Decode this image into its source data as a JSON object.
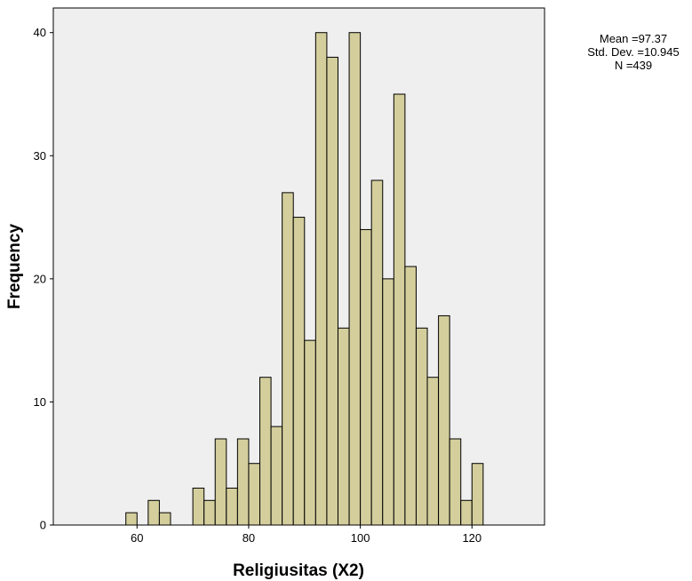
{
  "chart_data": {
    "type": "bar",
    "subtype": "histogram",
    "xlabel": "Religiusitas (X2)",
    "ylabel": "Frequency",
    "xlim": [
      45,
      133
    ],
    "ylim": [
      0,
      42
    ],
    "x_ticks": [
      60,
      80,
      100,
      120
    ],
    "y_ticks": [
      0,
      10,
      20,
      30,
      40
    ],
    "bin_width": 2,
    "bins": [
      {
        "center": 59,
        "count": 1
      },
      {
        "center": 63,
        "count": 2
      },
      {
        "center": 65,
        "count": 1
      },
      {
        "center": 71,
        "count": 3
      },
      {
        "center": 73,
        "count": 2
      },
      {
        "center": 75,
        "count": 7
      },
      {
        "center": 77,
        "count": 3
      },
      {
        "center": 79,
        "count": 7
      },
      {
        "center": 81,
        "count": 5
      },
      {
        "center": 83,
        "count": 12
      },
      {
        "center": 85,
        "count": 8
      },
      {
        "center": 87,
        "count": 27
      },
      {
        "center": 89,
        "count": 25
      },
      {
        "center": 91,
        "count": 15
      },
      {
        "center": 93,
        "count": 40
      },
      {
        "center": 95,
        "count": 38
      },
      {
        "center": 97,
        "count": 16
      },
      {
        "center": 99,
        "count": 40
      },
      {
        "center": 101,
        "count": 24
      },
      {
        "center": 103,
        "count": 28
      },
      {
        "center": 105,
        "count": 20
      },
      {
        "center": 107,
        "count": 35
      },
      {
        "center": 109,
        "count": 21
      },
      {
        "center": 111,
        "count": 16
      },
      {
        "center": 113,
        "count": 12
      },
      {
        "center": 115,
        "count": 17
      },
      {
        "center": 117,
        "count": 7
      },
      {
        "center": 119,
        "count": 2
      },
      {
        "center": 121,
        "count": 5
      }
    ],
    "stats": {
      "mean": "Mean =97.37",
      "std_dev": "Std. Dev. =10.945",
      "n": "N =439"
    },
    "colors": {
      "bar_fill": "#d3ce9c",
      "bar_stroke": "#000000",
      "plot_background": "#efefef"
    }
  }
}
